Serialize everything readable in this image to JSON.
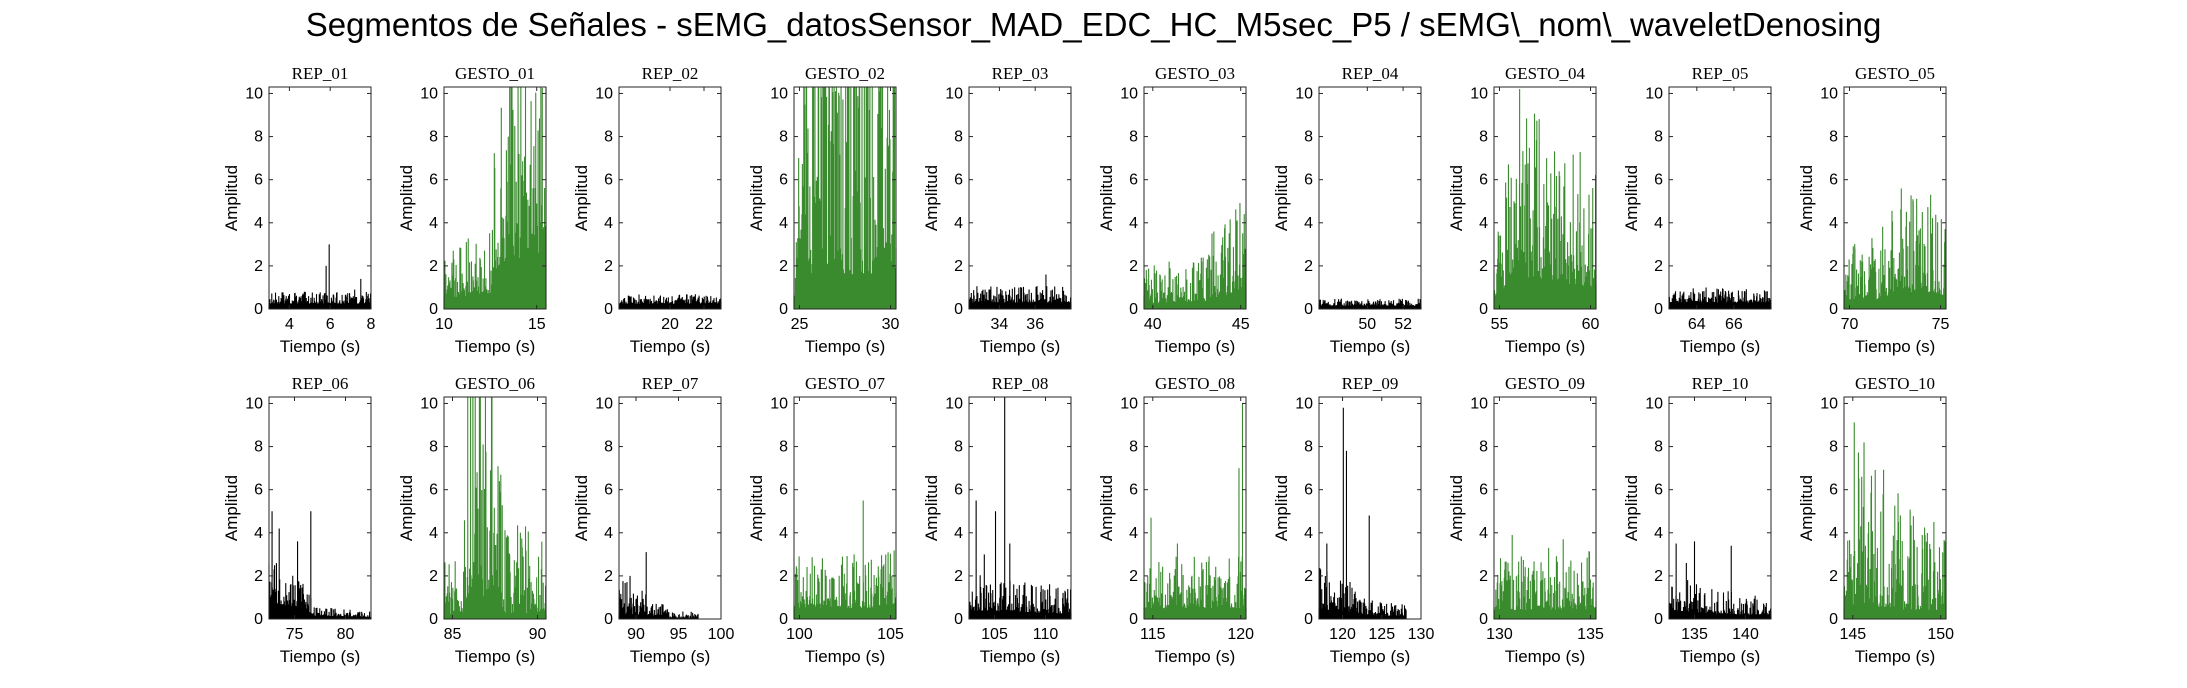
{
  "title": "Segmentos de Señales - sEMG_datosSensor_MAD_EDC_HC_M5sec_P5 / sEMG\\_nom\\_waveletDenosing",
  "colors": {
    "rep": "#000000",
    "gesto": "#3a8a2e"
  },
  "chart_data": [
    {
      "type": "bar",
      "title": "REP_01",
      "kind": "rep",
      "xlim": [
        3,
        8
      ],
      "xticks": [
        4,
        6,
        8
      ],
      "ylim": [
        0,
        10.3
      ],
      "yticks": [
        0,
        2,
        4,
        6,
        8,
        10
      ],
      "xlabel": "Tiempo (s)",
      "ylabel": "Amplitud",
      "base": 0.25,
      "noise": 0.25,
      "spikes": [
        {
          "x": 5.95,
          "y": 3.0
        },
        {
          "x": 5.8,
          "y": 2.0
        },
        {
          "x": 7.5,
          "y": 1.4
        },
        {
          "x": 7.2,
          "y": 0.9
        }
      ]
    },
    {
      "type": "bar",
      "title": "GESTO_01",
      "kind": "gesto",
      "xlim": [
        10,
        15.5
      ],
      "xticks": [
        10,
        15
      ],
      "ylim": [
        0,
        10.3
      ],
      "yticks": [
        0,
        2,
        4,
        6,
        8,
        10
      ],
      "xlabel": "Tiempo (s)",
      "ylabel": "Amplitud",
      "base": 0.6,
      "noise": 1.0,
      "ramp": [
        [
          10,
          0.8
        ],
        [
          12.5,
          1.2
        ],
        [
          13,
          3.5
        ],
        [
          15.5,
          4.5
        ]
      ],
      "spikes": [
        {
          "x": 13.6,
          "y": 6.7
        },
        {
          "x": 14.2,
          "y": 6.2
        },
        {
          "x": 14.8,
          "y": 5.6
        },
        {
          "x": 10.5,
          "y": 2.7
        }
      ]
    },
    {
      "type": "bar",
      "title": "REP_02",
      "kind": "rep",
      "xlim": [
        17,
        23
      ],
      "xticks": [
        20,
        22
      ],
      "ylim": [
        0,
        10.3
      ],
      "yticks": [
        0,
        2,
        4,
        6,
        8,
        10
      ],
      "xlabel": "Tiempo (s)",
      "ylabel": "Amplitud",
      "base": 0.25,
      "noise": 0.2,
      "spikes": [
        {
          "x": 22.4,
          "y": 0.6
        }
      ]
    },
    {
      "type": "bar",
      "title": "GESTO_02",
      "kind": "gesto",
      "xlim": [
        24.7,
        30.3
      ],
      "xticks": [
        25,
        30
      ],
      "ylim": [
        0,
        10.3
      ],
      "yticks": [
        0,
        2,
        4,
        6,
        8,
        10
      ],
      "xlabel": "Tiempo (s)",
      "ylabel": "Amplitud",
      "base": 0.8,
      "noise": 2.0,
      "ramp": [
        [
          24.7,
          0.4
        ],
        [
          25.5,
          2.0
        ],
        [
          30.3,
          2.0
        ]
      ],
      "spikes": [
        {
          "x": 29.5,
          "y": 8.4
        },
        {
          "x": 26.3,
          "y": 6.3
        },
        {
          "x": 28.6,
          "y": 6.1
        },
        {
          "x": 27.7,
          "y": 5.4
        }
      ]
    },
    {
      "type": "bar",
      "title": "REP_03",
      "kind": "rep",
      "xlim": [
        32.3,
        38
      ],
      "xticks": [
        34,
        36
      ],
      "ylim": [
        0,
        10.3
      ],
      "yticks": [
        0,
        2,
        4,
        6,
        8,
        10
      ],
      "xlabel": "Tiempo (s)",
      "ylabel": "Amplitud",
      "base": 0.3,
      "noise": 0.35,
      "spikes": [
        {
          "x": 36.6,
          "y": 1.6
        },
        {
          "x": 33.2,
          "y": 0.9
        }
      ]
    },
    {
      "type": "bar",
      "title": "GESTO_03",
      "kind": "gesto",
      "xlim": [
        39.5,
        45.3
      ],
      "xticks": [
        40,
        45
      ],
      "ylim": [
        0,
        10.3
      ],
      "yticks": [
        0,
        2,
        4,
        6,
        8,
        10
      ],
      "xlabel": "Tiempo (s)",
      "ylabel": "Amplitud",
      "base": 0.5,
      "noise": 0.8,
      "ramp": [
        [
          39.5,
          0.5
        ],
        [
          43,
          0.7
        ],
        [
          45.3,
          1.8
        ]
      ],
      "spikes": [
        {
          "x": 45.2,
          "y": 4.4
        },
        {
          "x": 44.4,
          "y": 2.7
        },
        {
          "x": 43.6,
          "y": 2.2
        },
        {
          "x": 40.4,
          "y": 1.6
        }
      ]
    },
    {
      "type": "bar",
      "title": "REP_04",
      "kind": "rep",
      "xlim": [
        47.3,
        53
      ],
      "xticks": [
        50,
        52
      ],
      "ylim": [
        0,
        10.3
      ],
      "yticks": [
        0,
        2,
        4,
        6,
        8,
        10
      ],
      "xlabel": "Tiempo (s)",
      "ylabel": "Amplitud",
      "base": 0.15,
      "noise": 0.15,
      "spikes": [
        {
          "x": 52.2,
          "y": 0.4
        }
      ]
    },
    {
      "type": "bar",
      "title": "GESTO_04",
      "kind": "gesto",
      "xlim": [
        54.7,
        60.3
      ],
      "xticks": [
        55,
        60
      ],
      "ylim": [
        0,
        10.3
      ],
      "yticks": [
        0,
        2,
        4,
        6,
        8,
        10
      ],
      "xlabel": "Tiempo (s)",
      "ylabel": "Amplitud",
      "base": 0.7,
      "noise": 1.5,
      "ramp": [
        [
          54.7,
          0.8
        ],
        [
          56,
          2.2
        ],
        [
          60.3,
          1.4
        ]
      ],
      "spikes": [
        {
          "x": 56.1,
          "y": 5.8
        },
        {
          "x": 55.8,
          "y": 5.0
        },
        {
          "x": 58.4,
          "y": 4.3
        },
        {
          "x": 57.2,
          "y": 3.8
        }
      ]
    },
    {
      "type": "bar",
      "title": "REP_05",
      "kind": "rep",
      "xlim": [
        62.5,
        68
      ],
      "xticks": [
        64,
        66
      ],
      "ylim": [
        0,
        10.3
      ],
      "yticks": [
        0,
        2,
        4,
        6,
        8,
        10
      ],
      "xlabel": "Tiempo (s)",
      "ylabel": "Amplitud",
      "base": 0.3,
      "noise": 0.3,
      "spikes": [
        {
          "x": 64.5,
          "y": 1.0
        },
        {
          "x": 63.3,
          "y": 0.8
        }
      ]
    },
    {
      "type": "bar",
      "title": "GESTO_05",
      "kind": "gesto",
      "xlim": [
        69.7,
        75.3
      ],
      "xticks": [
        70,
        75
      ],
      "ylim": [
        0,
        10.3
      ],
      "yticks": [
        0,
        2,
        4,
        6,
        8,
        10
      ],
      "xlabel": "Tiempo (s)",
      "ylabel": "Amplitud",
      "base": 0.5,
      "noise": 1.2,
      "ramp": [
        [
          69.7,
          0.8
        ],
        [
          71.5,
          0.9
        ],
        [
          73,
          1.6
        ],
        [
          75.3,
          1.3
        ]
      ],
      "spikes": [
        {
          "x": 73.5,
          "y": 5.0
        },
        {
          "x": 74.0,
          "y": 4.5
        },
        {
          "x": 74.5,
          "y": 3.5
        },
        {
          "x": 70.3,
          "y": 2.8
        }
      ]
    },
    {
      "type": "bar",
      "title": "REP_06",
      "kind": "rep",
      "xlim": [
        72.5,
        82.5
      ],
      "xticks": [
        75,
        80
      ],
      "ylim": [
        0,
        10.3
      ],
      "yticks": [
        0,
        2,
        4,
        6,
        8,
        10
      ],
      "xlabel": "Tiempo (s)",
      "ylabel": "Amplitud",
      "base": 0.3,
      "noise": 1.0,
      "ramp": [
        [
          72.5,
          2.5
        ],
        [
          76,
          1.5
        ],
        [
          77,
          0.5
        ],
        [
          82.5,
          0.3
        ]
      ],
      "spikes": [
        {
          "x": 72.8,
          "y": 5.0
        },
        {
          "x": 76.6,
          "y": 5.0
        },
        {
          "x": 73.5,
          "y": 4.2
        },
        {
          "x": 75.3,
          "y": 3.6
        }
      ]
    },
    {
      "type": "bar",
      "title": "GESTO_06",
      "kind": "gesto",
      "xlim": [
        84.5,
        90.5
      ],
      "xticks": [
        85,
        90
      ],
      "ylim": [
        0,
        10.3
      ],
      "yticks": [
        0,
        2,
        4,
        6,
        8,
        10
      ],
      "xlabel": "Tiempo (s)",
      "ylabel": "Amplitud",
      "base": 0.4,
      "noise": 1.2,
      "ramp": [
        [
          84.5,
          0.4
        ],
        [
          85.6,
          0.5
        ],
        [
          86,
          2.5
        ],
        [
          87.4,
          2.0
        ],
        [
          88,
          0.7
        ],
        [
          90.5,
          0.6
        ]
      ],
      "spikes": [
        {
          "x": 86.2,
          "y": 5.4
        },
        {
          "x": 86.8,
          "y": 4.4
        },
        {
          "x": 87.2,
          "y": 4.1
        }
      ]
    },
    {
      "type": "bar",
      "title": "REP_07",
      "kind": "rep",
      "xlim": [
        88,
        100
      ],
      "xticks": [
        90,
        95,
        100
      ],
      "ylim": [
        0,
        10.3
      ],
      "yticks": [
        0,
        2,
        4,
        6,
        8,
        10
      ],
      "xlabel": "Tiempo (s)",
      "ylabel": "Amplitud",
      "base": 0.2,
      "noise": 0.8,
      "ramp": [
        [
          88,
          1.3
        ],
        [
          91,
          0.8
        ],
        [
          94,
          0.3
        ],
        [
          97,
          0.2
        ]
      ],
      "spikes": [
        {
          "x": 91.2,
          "y": 3.1
        },
        {
          "x": 89.3,
          "y": 2.0
        }
      ],
      "dataEnd": 97.3
    },
    {
      "type": "bar",
      "title": "GESTO_07",
      "kind": "gesto",
      "xlim": [
        99.7,
        105.3
      ],
      "xticks": [
        100,
        105
      ],
      "ylim": [
        0,
        10.3
      ],
      "yticks": [
        0,
        2,
        4,
        6,
        8,
        10
      ],
      "xlabel": "Tiempo (s)",
      "ylabel": "Amplitud",
      "base": 0.6,
      "noise": 1.1,
      "ramp": [
        [
          99.7,
          0.8
        ],
        [
          105.3,
          0.9
        ]
      ],
      "spikes": [
        {
          "x": 103.5,
          "y": 5.5
        },
        {
          "x": 103.0,
          "y": 3.0
        },
        {
          "x": 101.2,
          "y": 2.3
        }
      ]
    },
    {
      "type": "bar",
      "title": "REP_08",
      "kind": "rep",
      "xlim": [
        102.5,
        112.5
      ],
      "xticks": [
        105,
        110
      ],
      "ylim": [
        0,
        10.3
      ],
      "yticks": [
        0,
        2,
        4,
        6,
        8,
        10
      ],
      "xlabel": "Tiempo (s)",
      "ylabel": "Amplitud",
      "base": 0.4,
      "noise": 0.9,
      "ramp": [
        [
          102.5,
          1.0
        ],
        [
          112.5,
          0.6
        ]
      ],
      "spikes": [
        {
          "x": 106.0,
          "y": 10.3
        },
        {
          "x": 103.2,
          "y": 5.5
        },
        {
          "x": 105.1,
          "y": 5.0
        },
        {
          "x": 106.5,
          "y": 3.5
        },
        {
          "x": 104.0,
          "y": 3.0
        }
      ]
    },
    {
      "type": "bar",
      "title": "GESTO_08",
      "kind": "gesto",
      "xlim": [
        114.5,
        120.3
      ],
      "xticks": [
        115,
        120
      ],
      "ylim": [
        0,
        10.3
      ],
      "yticks": [
        0,
        2,
        4,
        6,
        8,
        10
      ],
      "xlabel": "Tiempo (s)",
      "ylabel": "Amplitud",
      "base": 0.5,
      "noise": 1.1,
      "ramp": [
        [
          114.5,
          1.0
        ],
        [
          120.3,
          1.0
        ]
      ],
      "spikes": [
        {
          "x": 120.1,
          "y": 10.0
        },
        {
          "x": 119.9,
          "y": 7.0
        },
        {
          "x": 114.9,
          "y": 4.7
        },
        {
          "x": 116.4,
          "y": 3.5
        },
        {
          "x": 118.2,
          "y": 2.9
        }
      ]
    },
    {
      "type": "bar",
      "title": "REP_09",
      "kind": "rep",
      "xlim": [
        117,
        130
      ],
      "xticks": [
        120,
        125,
        130
      ],
      "ylim": [
        0,
        10.3
      ],
      "yticks": [
        0,
        2,
        4,
        6,
        8,
        10
      ],
      "xlabel": "Tiempo (s)",
      "ylabel": "Amplitud",
      "base": 0.3,
      "noise": 0.9,
      "ramp": [
        [
          117,
          1.4
        ],
        [
          121,
          1.0
        ],
        [
          124,
          0.5
        ],
        [
          128,
          0.4
        ]
      ],
      "spikes": [
        {
          "x": 120.1,
          "y": 9.8
        },
        {
          "x": 120.5,
          "y": 7.8
        },
        {
          "x": 123.4,
          "y": 4.8
        },
        {
          "x": 118.0,
          "y": 3.5
        }
      ],
      "dataEnd": 128.1
    },
    {
      "type": "bar",
      "title": "GESTO_09",
      "kind": "gesto",
      "xlim": [
        129.7,
        135.3
      ],
      "xticks": [
        130,
        135
      ],
      "ylim": [
        0,
        10.3
      ],
      "yticks": [
        0,
        2,
        4,
        6,
        8,
        10
      ],
      "xlabel": "Tiempo (s)",
      "ylabel": "Amplitud",
      "base": 0.5,
      "noise": 1.1,
      "ramp": [
        [
          129.7,
          0.8
        ],
        [
          135.3,
          0.9
        ]
      ],
      "spikes": [
        {
          "x": 130.7,
          "y": 3.9
        },
        {
          "x": 132.7,
          "y": 3.3
        },
        {
          "x": 133.5,
          "y": 3.7
        },
        {
          "x": 131.2,
          "y": 2.9
        }
      ]
    },
    {
      "type": "bar",
      "title": "REP_10",
      "kind": "rep",
      "xlim": [
        132.5,
        142.5
      ],
      "xticks": [
        135,
        140
      ],
      "ylim": [
        0,
        10.3
      ],
      "yticks": [
        0,
        2,
        4,
        6,
        8,
        10
      ],
      "xlabel": "Tiempo (s)",
      "ylabel": "Amplitud",
      "base": 0.3,
      "noise": 0.9,
      "ramp": [
        [
          132.5,
          1.4
        ],
        [
          137,
          0.8
        ],
        [
          142.5,
          0.6
        ]
      ],
      "spikes": [
        {
          "x": 133.2,
          "y": 3.5
        },
        {
          "x": 135.0,
          "y": 3.6
        },
        {
          "x": 138.6,
          "y": 3.4
        },
        {
          "x": 134.2,
          "y": 2.6
        }
      ]
    },
    {
      "type": "bar",
      "title": "GESTO_10",
      "kind": "gesto",
      "xlim": [
        144.5,
        150.3
      ],
      "xticks": [
        145,
        150
      ],
      "ylim": [
        0,
        10.3
      ],
      "yticks": [
        0,
        2,
        4,
        6,
        8,
        10
      ],
      "xlabel": "Tiempo (s)",
      "ylabel": "Amplitud",
      "base": 0.4,
      "noise": 0.9,
      "ramp": [
        [
          144.5,
          0.4
        ],
        [
          145.2,
          2.0
        ],
        [
          147,
          1.2
        ],
        [
          150.3,
          0.8
        ]
      ],
      "spikes": [
        {
          "x": 145.6,
          "y": 5.2
        },
        {
          "x": 145.9,
          "y": 4.5
        },
        {
          "x": 146.4,
          "y": 3.3
        }
      ]
    }
  ]
}
